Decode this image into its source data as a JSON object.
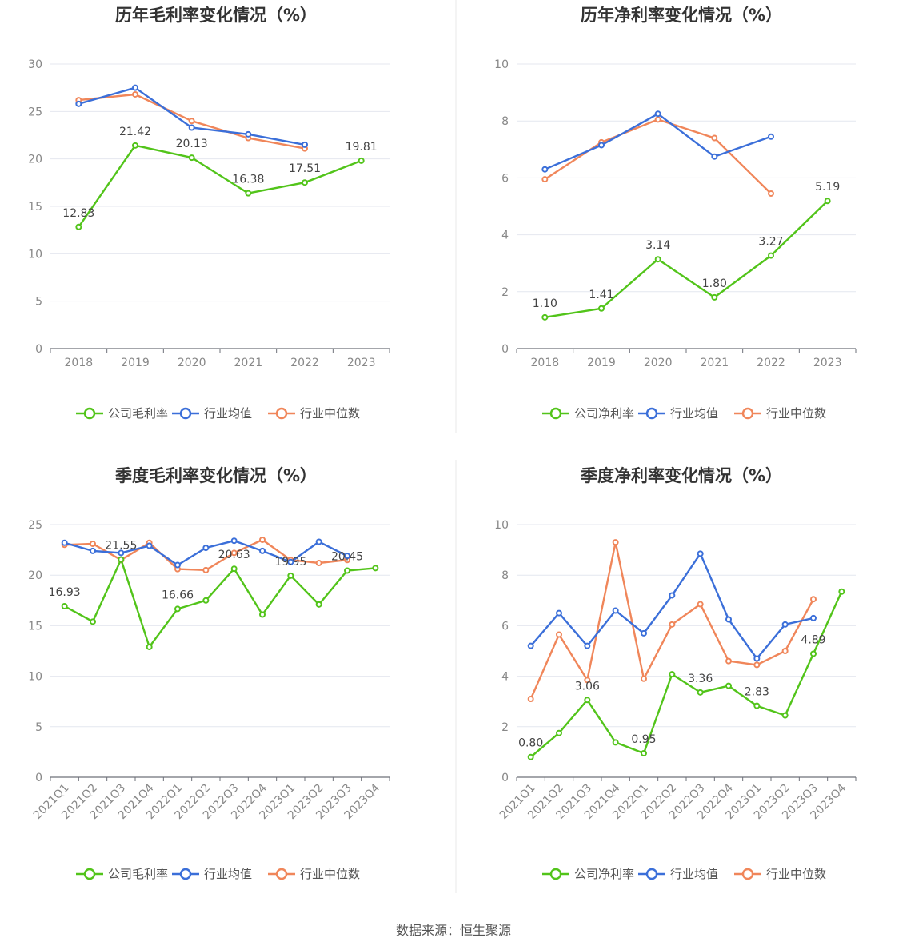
{
  "colors": {
    "company": "#52c41a",
    "avg": "#3b6fd9",
    "median": "#f0865a",
    "grid": "#e4e7ef",
    "divider": "#e8e8e8"
  },
  "source": "数据来源：恒生聚源",
  "chart_data": [
    {
      "type": "line",
      "title": "历年毛利率变化情况（%）",
      "categories": [
        "2018",
        "2019",
        "2020",
        "2021",
        "2022",
        "2023"
      ],
      "yticks": [
        "0",
        "5",
        "10",
        "15",
        "20",
        "25",
        "30"
      ],
      "ylim": [
        0,
        30
      ],
      "series": [
        {
          "name": "公司毛利率",
          "role": "company",
          "values": [
            12.83,
            21.42,
            20.13,
            16.38,
            17.51,
            19.81
          ],
          "labels": [
            "12.83",
            "21.42",
            "20.13",
            "16.38",
            "17.51",
            "19.81"
          ]
        },
        {
          "name": "行业均值",
          "role": "avg",
          "values": [
            25.8,
            27.5,
            23.3,
            22.6,
            21.5,
            null
          ]
        },
        {
          "name": "行业中位数",
          "role": "median",
          "values": [
            26.2,
            26.8,
            24.0,
            22.2,
            21.1,
            null
          ]
        }
      ]
    },
    {
      "type": "line",
      "title": "历年净利率变化情况（%）",
      "categories": [
        "2018",
        "2019",
        "2020",
        "2021",
        "2022",
        "2023"
      ],
      "yticks": [
        "0",
        "2",
        "4",
        "6",
        "8",
        "10"
      ],
      "ylim": [
        0,
        10
      ],
      "series": [
        {
          "name": "公司净利率",
          "role": "company",
          "values": [
            1.1,
            1.41,
            3.14,
            1.8,
            3.27,
            5.19
          ],
          "labels": [
            "1.10",
            "1.41",
            "3.14",
            "1.80",
            "3.27",
            "5.19"
          ]
        },
        {
          "name": "行业均值",
          "role": "avg",
          "values": [
            6.3,
            7.15,
            8.25,
            6.75,
            7.45,
            null
          ]
        },
        {
          "name": "行业中位数",
          "role": "median",
          "values": [
            5.95,
            7.25,
            8.05,
            7.4,
            5.45,
            null
          ]
        }
      ]
    },
    {
      "type": "line",
      "title": "季度毛利率变化情况（%）",
      "categories": [
        "2021Q1",
        "2021Q2",
        "2021Q3",
        "2021Q4",
        "2022Q1",
        "2022Q2",
        "2022Q3",
        "2022Q4",
        "2023Q1",
        "2023Q2",
        "2023Q3",
        "2023Q4"
      ],
      "yticks": [
        "0",
        "5",
        "10",
        "15",
        "20",
        "25"
      ],
      "ylim": [
        0,
        25
      ],
      "series": [
        {
          "name": "公司毛利率",
          "role": "company",
          "values": [
            16.93,
            15.4,
            21.55,
            12.9,
            16.66,
            17.5,
            20.63,
            16.1,
            19.95,
            17.1,
            20.45,
            20.7
          ],
          "labels": [
            "16.93",
            "",
            "21.55",
            "",
            "16.66",
            "",
            "20.63",
            "",
            "19.95",
            "",
            "20.45",
            ""
          ]
        },
        {
          "name": "行业均值",
          "role": "avg",
          "values": [
            23.2,
            22.4,
            22.2,
            22.9,
            21.0,
            22.7,
            23.4,
            22.4,
            21.3,
            23.3,
            21.9,
            null
          ]
        },
        {
          "name": "行业中位数",
          "role": "median",
          "values": [
            23.0,
            23.1,
            21.5,
            23.2,
            20.6,
            20.5,
            22.2,
            23.5,
            21.5,
            21.2,
            21.5,
            null
          ]
        }
      ]
    },
    {
      "type": "line",
      "title": "季度净利率变化情况（%）",
      "categories": [
        "2021Q1",
        "2021Q2",
        "2021Q3",
        "2021Q4",
        "2022Q1",
        "2022Q2",
        "2022Q3",
        "2022Q4",
        "2023Q1",
        "2023Q2",
        "2023Q3",
        "2023Q4"
      ],
      "yticks": [
        "0",
        "2",
        "4",
        "6",
        "8",
        "10"
      ],
      "ylim": [
        0,
        10
      ],
      "series": [
        {
          "name": "公司净利率",
          "role": "company",
          "values": [
            0.8,
            1.75,
            3.06,
            1.38,
            0.95,
            4.08,
            3.36,
            3.62,
            2.83,
            2.45,
            4.89,
            7.35
          ],
          "labels": [
            "0.80",
            "",
            "3.06",
            "",
            "0.95",
            "",
            "3.36",
            "",
            "2.83",
            "",
            "4.89",
            ""
          ]
        },
        {
          "name": "行业均值",
          "role": "avg",
          "values": [
            5.2,
            6.5,
            5.2,
            6.6,
            5.7,
            7.2,
            8.85,
            6.25,
            4.7,
            6.05,
            6.3,
            null
          ]
        },
        {
          "name": "行业中位数",
          "role": "median",
          "values": [
            3.1,
            5.65,
            3.85,
            9.3,
            3.9,
            6.05,
            6.85,
            4.6,
            4.45,
            5.0,
            7.05,
            null
          ]
        }
      ]
    }
  ]
}
